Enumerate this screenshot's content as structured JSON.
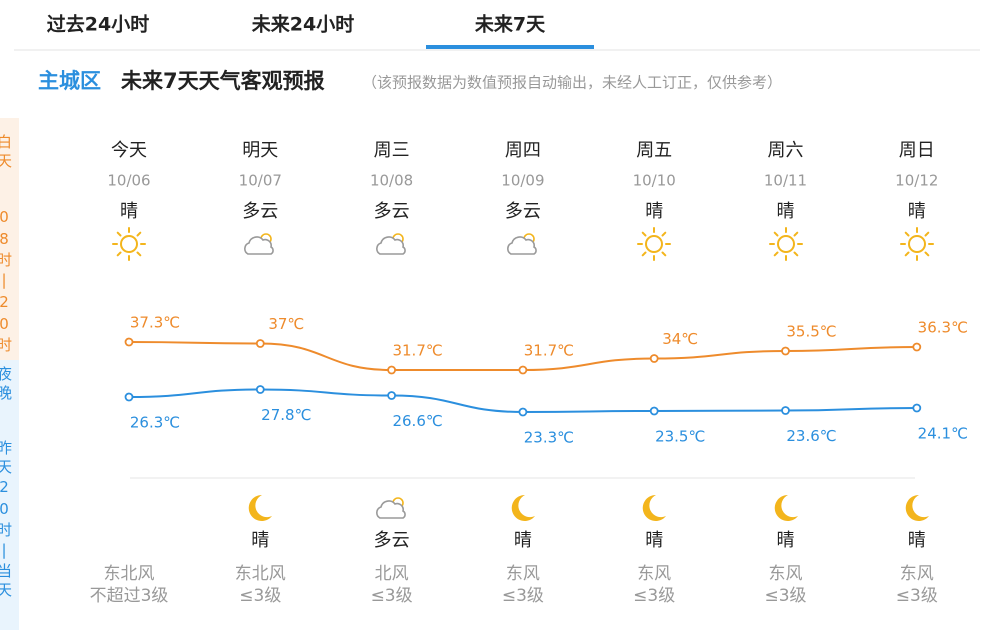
{
  "tabs": [
    "过去24小时",
    "未来24小时",
    "未来7天"
  ],
  "header": {
    "district": "主城区",
    "title": "未来7天天气客观预报",
    "note": "（该预报数据为数值预报自动输出，未经人工订正，仅供参考）"
  },
  "side": {
    "day": "白天",
    "day_time": "08时|20时",
    "night": "夜晚",
    "night_time": "昨天20时|当天"
  },
  "days": [
    {
      "name": "今天",
      "date": "10/06",
      "day_weather": "晴",
      "wind": "东北风",
      "wind_level": "不超过3级"
    },
    {
      "name": "明天",
      "date": "10/07",
      "day_weather": "多云",
      "night_weather": "晴",
      "wind": "东北风",
      "wind_level": "≤3级"
    },
    {
      "name": "周三",
      "date": "10/08",
      "day_weather": "多云",
      "night_weather": "多云",
      "wind": "北风",
      "wind_level": "≤3级"
    },
    {
      "name": "周四",
      "date": "10/09",
      "day_weather": "多云",
      "night_weather": "晴",
      "wind": "东风",
      "wind_level": "≤3级"
    },
    {
      "name": "周五",
      "date": "10/10",
      "day_weather": "晴",
      "night_weather": "晴",
      "wind": "东风",
      "wind_level": "≤3级"
    },
    {
      "name": "周六",
      "date": "10/11",
      "day_weather": "晴",
      "night_weather": "晴",
      "wind": "东风",
      "wind_level": "≤3级"
    },
    {
      "name": "周日",
      "date": "10/12",
      "day_weather": "晴",
      "night_weather": "晴",
      "wind": "东风",
      "wind_level": "≤3级"
    }
  ],
  "chart_data": {
    "type": "line",
    "ylim": [
      10,
      40
    ],
    "series": [
      {
        "color": "#ee8b2c",
        "values": [
          37.3,
          37,
          31.7,
          31.7,
          34,
          35.5,
          36.3
        ],
        "value_labels": [
          "37.3℃",
          "37℃",
          "31.7℃",
          "31.7℃",
          "34℃",
          "35.5℃",
          "36.3℃"
        ]
      },
      {
        "color": "#2b8fde",
        "values": [
          26.3,
          27.8,
          26.6,
          23.3,
          23.5,
          23.6,
          24.1
        ],
        "value_labels": [
          "26.3℃",
          "27.8℃",
          "26.6℃",
          "23.3℃",
          "23.5℃",
          "23.6℃",
          "24.1℃"
        ]
      }
    ]
  }
}
